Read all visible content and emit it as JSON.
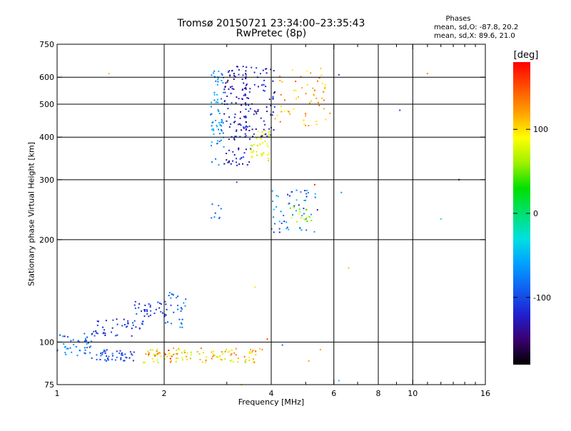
{
  "header": {
    "title": "Tromsø 20150721 23:34:00–23:35:43",
    "subtitle": "RwPretec (8p)",
    "phase_title": "Phases",
    "phase_o_stats": "mean, sd,O: -87.8, 20.2",
    "phase_x_stats": "mean, sd,X:  89.6, 21.0"
  },
  "colorbar": {
    "unit_label": "[deg]",
    "range": [
      -180,
      180
    ],
    "ticks": [
      100,
      0,
      -100
    ],
    "tick_labels": [
      "100",
      "0",
      "-100"
    ],
    "colors": [
      "#000000",
      "#3a0070",
      "#2020d0",
      "#1060f0",
      "#00a0ff",
      "#00e0e0",
      "#00e070",
      "#00e000",
      "#a0f000",
      "#ffff00",
      "#ffa000",
      "#ff5000",
      "#ff0000"
    ]
  },
  "chart_data": {
    "type": "scatter",
    "title": "Tromsø 20150721 23:34:00–23:35:43",
    "subtitle": "RwPretec (8p)",
    "xlabel": "Frequency [MHz]",
    "ylabel": "Stationary phase Virtual Height [km]",
    "xscale": "log",
    "yscale": "log",
    "xlim": [
      1,
      16
    ],
    "ylim": [
      75,
      750
    ],
    "xticks": [
      1,
      2,
      4,
      6,
      8,
      10,
      16
    ],
    "xtick_labels": [
      "1",
      "2",
      "4",
      "6",
      "8",
      "10",
      "16"
    ],
    "xminor": [
      3,
      5,
      7,
      9,
      11,
      12,
      13,
      14,
      15
    ],
    "xgrid": [
      2,
      4,
      6,
      8,
      10
    ],
    "yticks": [
      75,
      100,
      200,
      300,
      400,
      500,
      600,
      750
    ],
    "ytick_labels": [
      "75",
      "100",
      "200",
      "300",
      "400",
      "500",
      "600",
      "750"
    ],
    "ygrid": [
      100,
      200,
      300,
      400,
      500,
      600
    ],
    "grid": true,
    "color_value": "phase [deg]",
    "clusters": [
      {
        "freq": [
          1.0,
          1.25
        ],
        "height": [
          90,
          106
        ],
        "phase": [
          -110,
          -50
        ],
        "n": 40
      },
      {
        "freq": [
          1.25,
          1.65
        ],
        "height": [
          88,
          95
        ],
        "phase": [
          -130,
          -80
        ],
        "n": 45
      },
      {
        "freq": [
          1.25,
          1.75
        ],
        "height": [
          104,
          118
        ],
        "phase": [
          -130,
          -90
        ],
        "n": 45
      },
      {
        "freq": [
          1.65,
          2.05
        ],
        "height": [
          118,
          132
        ],
        "phase": [
          -130,
          -90
        ],
        "n": 35
      },
      {
        "freq": [
          2.0,
          2.3
        ],
        "height": [
          110,
          142
        ],
        "phase": [
          -110,
          -60
        ],
        "n": 30
      },
      {
        "freq": [
          1.75,
          3.8
        ],
        "height": [
          87,
          96
        ],
        "phase": [
          60,
          140
        ],
        "n": 110
      },
      {
        "freq": [
          1.75,
          2.2
        ],
        "height": [
          88,
          95
        ],
        "phase": [
          140,
          175
        ],
        "n": 8
      },
      {
        "freq": [
          2.7,
          2.95
        ],
        "height": [
          330,
          640
        ],
        "phase": [
          -90,
          -40
        ],
        "n": 70
      },
      {
        "freq": [
          2.95,
          3.5
        ],
        "height": [
          330,
          650
        ],
        "phase": [
          -150,
          -100
        ],
        "n": 120
      },
      {
        "freq": [
          3.3,
          4.1
        ],
        "height": [
          400,
          650
        ],
        "phase": [
          -140,
          -100
        ],
        "n": 80
      },
      {
        "freq": [
          3.5,
          4.0
        ],
        "height": [
          340,
          420
        ],
        "phase": [
          60,
          110
        ],
        "n": 40
      },
      {
        "freq": [
          4.1,
          5.9
        ],
        "height": [
          430,
          640
        ],
        "phase": [
          90,
          150
        ],
        "n": 60
      },
      {
        "freq": [
          4.0,
          5.4
        ],
        "height": [
          210,
          280
        ],
        "phase": [
          -130,
          -40
        ],
        "n": 55
      },
      {
        "freq": [
          4.5,
          5.2
        ],
        "height": [
          225,
          250
        ],
        "phase": [
          40,
          110
        ],
        "n": 18
      },
      {
        "freq": [
          2.7,
          2.9
        ],
        "height": [
          230,
          255
        ],
        "phase": [
          -110,
          -70
        ],
        "n": 8
      }
    ],
    "points": [
      {
        "freq": 1.4,
        "height": 615,
        "phase": 110
      },
      {
        "freq": 6.2,
        "height": 610,
        "phase": -110
      },
      {
        "freq": 9.2,
        "height": 480,
        "phase": -110
      },
      {
        "freq": 11.0,
        "height": 615,
        "phase": 130
      },
      {
        "freq": 12.0,
        "height": 230,
        "phase": -30
      },
      {
        "freq": 13.5,
        "height": 300,
        "phase": -160
      },
      {
        "freq": 6.3,
        "height": 275,
        "phase": -60
      },
      {
        "freq": 6.6,
        "height": 165,
        "phase": 110
      },
      {
        "freq": 5.3,
        "height": 290,
        "phase": 170
      },
      {
        "freq": 3.6,
        "height": 145,
        "phase": 100
      },
      {
        "freq": 3.9,
        "height": 102,
        "phase": 160
      },
      {
        "freq": 4.3,
        "height": 98,
        "phase": -80
      },
      {
        "freq": 5.5,
        "height": 95,
        "phase": 120
      },
      {
        "freq": 5.1,
        "height": 88,
        "phase": 120
      },
      {
        "freq": 6.2,
        "height": 77,
        "phase": -40
      },
      {
        "freq": 3.3,
        "height": 75,
        "phase": 110
      },
      {
        "freq": 3.2,
        "height": 295,
        "phase": -100
      },
      {
        "freq": 1.05,
        "height": 104,
        "phase": -130
      }
    ]
  }
}
